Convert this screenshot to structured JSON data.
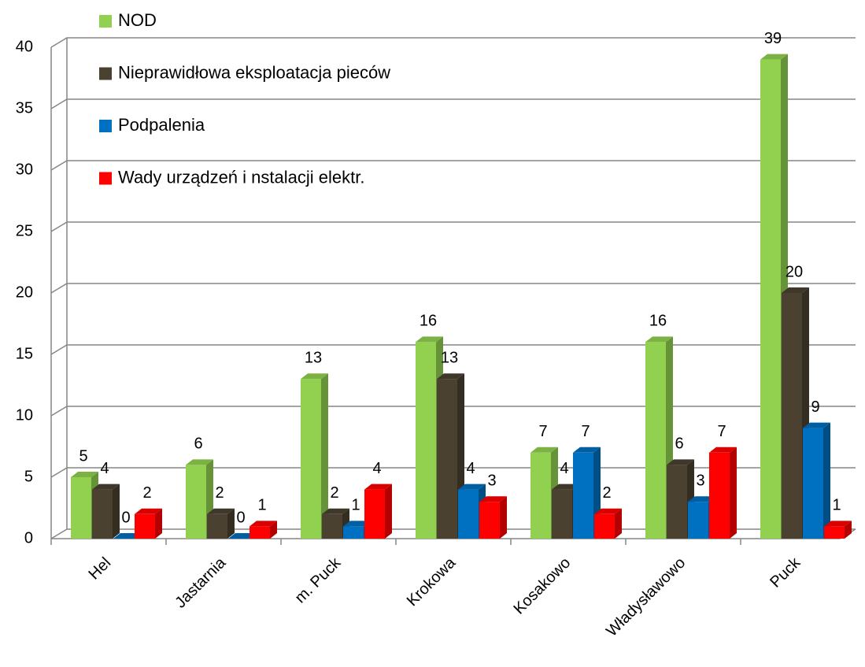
{
  "chart_data": {
    "type": "bar3d",
    "categories": [
      "Hel",
      "Jastarnia",
      "m. Puck",
      "Krokowa",
      "Kosakowo",
      "Władysławowo",
      "Puck"
    ],
    "series": [
      {
        "name": "NOD",
        "color": "#92d050",
        "values": [
          5,
          6,
          13,
          16,
          7,
          16,
          39
        ]
      },
      {
        "name": "Nieprawidłowa eksploatacja pieców",
        "color": "#4a4130",
        "values": [
          4,
          2,
          2,
          13,
          4,
          6,
          20
        ]
      },
      {
        "name": "Podpalenia",
        "color": "#0070c0",
        "values": [
          0,
          0,
          1,
          4,
          7,
          3,
          9
        ]
      },
      {
        "name": "Wady urządzeń i nstalacji elektr.",
        "color": "#ff0000",
        "values": [
          2,
          1,
          4,
          3,
          2,
          7,
          1
        ]
      }
    ],
    "ylim": [
      0,
      40
    ],
    "yticks": [
      0,
      5,
      10,
      15,
      20,
      25,
      30,
      35,
      40
    ],
    "grid": true,
    "legend": "top-left"
  }
}
